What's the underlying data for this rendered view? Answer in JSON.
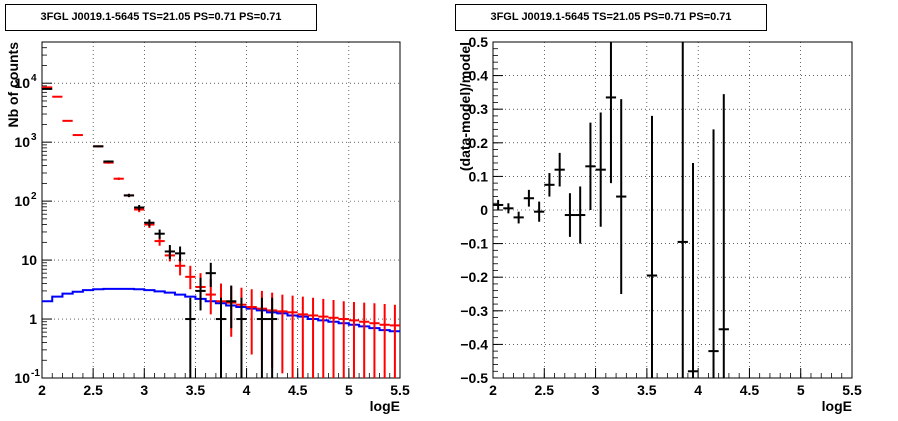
{
  "chart_data": [
    {
      "type": "scatter",
      "panel": "left",
      "title": "3FGL J0019.1-5645 TS=21.05 PS=0.71 PS=0.71",
      "xlabel": "logE",
      "ylabel": "Nb of counts",
      "xlim": [
        2,
        5.5
      ],
      "ylim": [
        0.1,
        50000
      ],
      "yscale": "log",
      "grid": true,
      "x_ticks": [
        "2",
        "2.5",
        "3",
        "3.5",
        "4",
        "4.5",
        "5",
        "5.5"
      ],
      "y_ticks": [
        {
          "value": 0.1,
          "label": "10",
          "exp": "-1"
        },
        {
          "value": 1,
          "label": "1",
          "exp": ""
        },
        {
          "value": 10,
          "label": "10",
          "exp": ""
        },
        {
          "value": 100,
          "label": "10",
          "exp": "2"
        },
        {
          "value": 1000,
          "label": "10",
          "exp": "3"
        },
        {
          "value": 10000,
          "label": "10",
          "exp": "4"
        }
      ],
      "series": [
        {
          "color": "#ff0000",
          "halfwidth": 0.05,
          "points": [
            {
              "x": 2.05,
              "y": 8500,
              "lo": 8300,
              "hi": 8700
            },
            {
              "x": 2.15,
              "y": 5900,
              "lo": 5750,
              "hi": 6050
            },
            {
              "x": 2.25,
              "y": 2300,
              "lo": 2250,
              "hi": 2350
            },
            {
              "x": 2.35,
              "y": 1320,
              "lo": 1290,
              "hi": 1350
            },
            {
              "x": 2.55,
              "y": 850,
              "lo": 820,
              "hi": 880
            },
            {
              "x": 2.65,
              "y": 450,
              "lo": 430,
              "hi": 470
            },
            {
              "x": 2.75,
              "y": 240,
              "lo": 228,
              "hi": 252
            },
            {
              "x": 2.85,
              "y": 125,
              "lo": 117,
              "hi": 133
            },
            {
              "x": 2.95,
              "y": 72,
              "lo": 65,
              "hi": 79
            },
            {
              "x": 3.05,
              "y": 40,
              "lo": 35,
              "hi": 45
            },
            {
              "x": 3.15,
              "y": 21,
              "lo": 17.5,
              "hi": 25
            },
            {
              "x": 3.25,
              "y": 12,
              "lo": 9.5,
              "hi": 15
            },
            {
              "x": 3.35,
              "y": 8,
              "lo": 5.5,
              "hi": 11.5
            },
            {
              "x": 3.45,
              "y": 5.2,
              "lo": 3.2,
              "hi": 8
            },
            {
              "x": 3.55,
              "y": 3.5,
              "lo": 1.8,
              "hi": 6
            },
            {
              "x": 3.65,
              "y": 2.6,
              "lo": 1.2,
              "hi": 4.8
            },
            {
              "x": 3.75,
              "y": 2.0,
              "lo": 0.75,
              "hi": 4.0
            },
            {
              "x": 3.85,
              "y": 1.9,
              "lo": 0.5,
              "hi": 3.6
            },
            {
              "x": 3.95,
              "y": 1.75,
              "lo": 0.35,
              "hi": 3.4
            },
            {
              "x": 4.05,
              "y": 1.6,
              "lo": 0.25,
              "hi": 3.2
            },
            {
              "x": 4.15,
              "y": 1.5,
              "lo": 0.2,
              "hi": 3.0
            },
            {
              "x": 4.25,
              "y": 1.4,
              "lo": 0.15,
              "hi": 2.8
            },
            {
              "x": 4.35,
              "y": 1.35,
              "lo": 0.12,
              "hi": 2.6
            },
            {
              "x": 4.45,
              "y": 1.3,
              "lo": 0.1,
              "hi": 2.5
            },
            {
              "x": 4.55,
              "y": 1.2,
              "lo": 0.1,
              "hi": 2.4
            },
            {
              "x": 4.65,
              "y": 1.15,
              "lo": 0.1,
              "hi": 2.3
            },
            {
              "x": 4.75,
              "y": 1.1,
              "lo": 0.1,
              "hi": 2.2
            },
            {
              "x": 4.85,
              "y": 1.05,
              "lo": 0.1,
              "hi": 2.1
            },
            {
              "x": 4.95,
              "y": 1.0,
              "lo": 0.1,
              "hi": 2.0
            },
            {
              "x": 5.05,
              "y": 0.95,
              "lo": 0.1,
              "hi": 1.95
            },
            {
              "x": 5.15,
              "y": 0.9,
              "lo": 0.1,
              "hi": 1.9
            },
            {
              "x": 5.25,
              "y": 0.85,
              "lo": 0.1,
              "hi": 1.85
            },
            {
              "x": 5.35,
              "y": 0.8,
              "lo": 0.1,
              "hi": 1.8
            },
            {
              "x": 5.45,
              "y": 0.78,
              "lo": 0.1,
              "hi": 1.75
            }
          ]
        },
        {
          "color": "#000000",
          "halfwidth": 0.05,
          "points": [
            {
              "x": 2.05,
              "y": 8000,
              "lo": 7800,
              "hi": 8200
            },
            {
              "x": 2.55,
              "y": 850,
              "lo": 820,
              "hi": 880
            },
            {
              "x": 2.65,
              "y": 470,
              "lo": 450,
              "hi": 490
            },
            {
              "x": 2.85,
              "y": 125,
              "lo": 117,
              "hi": 133
            },
            {
              "x": 2.95,
              "y": 78,
              "lo": 70,
              "hi": 86
            },
            {
              "x": 3.05,
              "y": 43,
              "lo": 37,
              "hi": 49
            },
            {
              "x": 3.15,
              "y": 28,
              "lo": 23,
              "hi": 33
            },
            {
              "x": 3.25,
              "y": 14,
              "lo": 10.5,
              "hi": 18
            },
            {
              "x": 3.35,
              "y": 13,
              "lo": 9.5,
              "hi": 17
            },
            {
              "x": 3.45,
              "y": 1,
              "lo": 0.1,
              "hi": 2.3
            },
            {
              "x": 3.55,
              "y": 3,
              "lo": 1.4,
              "hi": 5
            },
            {
              "x": 3.65,
              "y": 6,
              "lo": 3.5,
              "hi": 9
            },
            {
              "x": 3.75,
              "y": 1,
              "lo": 0.1,
              "hi": 2.3
            },
            {
              "x": 3.85,
              "y": 2,
              "lo": 0.7,
              "hi": 3.7
            },
            {
              "x": 3.95,
              "y": 1,
              "lo": 0.1,
              "hi": 2.3
            },
            {
              "x": 4.15,
              "y": 1,
              "lo": 0.1,
              "hi": 2.3
            },
            {
              "x": 4.25,
              "y": 1,
              "lo": 0.1,
              "hi": 2.3
            }
          ]
        }
      ],
      "model": {
        "color": "#0000ff",
        "x": [
          2.0,
          2.1,
          2.2,
          2.3,
          2.4,
          2.5,
          2.6,
          2.7,
          2.8,
          2.9,
          3.0,
          3.1,
          3.2,
          3.3,
          3.4,
          3.5,
          3.6,
          3.7,
          3.8,
          3.9,
          4.0,
          4.1,
          4.2,
          4.3,
          4.4,
          4.5,
          4.6,
          4.7,
          4.8,
          4.9,
          5.0,
          5.1,
          5.2,
          5.3,
          5.4,
          5.5
        ],
        "y": [
          2.0,
          2.4,
          2.7,
          2.9,
          3.1,
          3.2,
          3.25,
          3.25,
          3.25,
          3.2,
          3.1,
          2.95,
          2.8,
          2.6,
          2.4,
          2.2,
          2.0,
          1.85,
          1.7,
          1.6,
          1.5,
          1.4,
          1.3,
          1.25,
          1.15,
          1.1,
          1.0,
          0.95,
          0.9,
          0.85,
          0.8,
          0.75,
          0.7,
          0.65,
          0.62,
          0.6
        ]
      }
    },
    {
      "type": "scatter",
      "panel": "right",
      "title": "3FGL J0019.1-5645 TS=21.05 PS=0.71 PS=0.71",
      "xlabel": "logE",
      "ylabel": "(data-model)/model",
      "xlim": [
        2,
        5.5
      ],
      "ylim": [
        -0.5,
        0.5
      ],
      "yscale": "linear",
      "grid": true,
      "x_ticks": [
        "2",
        "2.5",
        "3",
        "3.5",
        "4",
        "4.5",
        "5",
        "5.5"
      ],
      "y_ticks": [
        {
          "value": -0.5,
          "label": "−0.5"
        },
        {
          "value": -0.4,
          "label": "−0.4"
        },
        {
          "value": -0.3,
          "label": "−0.3"
        },
        {
          "value": -0.2,
          "label": "−0.2"
        },
        {
          "value": -0.1,
          "label": "−0.1"
        },
        {
          "value": 0,
          "label": "0"
        },
        {
          "value": 0.1,
          "label": "0.1"
        },
        {
          "value": 0.2,
          "label": "0.2"
        },
        {
          "value": 0.3,
          "label": "0.3"
        },
        {
          "value": 0.4,
          "label": "0.4"
        },
        {
          "value": 0.5,
          "label": "0.5"
        }
      ],
      "series": [
        {
          "color": "#000000",
          "halfwidth": 0.05,
          "points": [
            {
              "x": 2.05,
              "y": 0.015,
              "lo": 0.0,
              "hi": 0.03
            },
            {
              "x": 2.15,
              "y": 0.005,
              "lo": -0.01,
              "hi": 0.02
            },
            {
              "x": 2.25,
              "y": -0.022,
              "lo": -0.04,
              "hi": -0.005
            },
            {
              "x": 2.35,
              "y": 0.035,
              "lo": 0.01,
              "hi": 0.06
            },
            {
              "x": 2.45,
              "y": -0.005,
              "lo": -0.035,
              "hi": 0.025
            },
            {
              "x": 2.55,
              "y": 0.075,
              "lo": 0.04,
              "hi": 0.11
            },
            {
              "x": 2.65,
              "y": 0.12,
              "lo": 0.07,
              "hi": 0.17
            },
            {
              "x": 2.75,
              "y": -0.015,
              "lo": -0.08,
              "hi": 0.05
            },
            {
              "x": 2.85,
              "y": -0.015,
              "lo": -0.1,
              "hi": 0.07
            },
            {
              "x": 2.95,
              "y": 0.13,
              "lo": 0.0,
              "hi": 0.26
            },
            {
              "x": 3.05,
              "y": 0.12,
              "lo": -0.05,
              "hi": 0.29
            },
            {
              "x": 3.15,
              "y": 0.335,
              "lo": 0.08,
              "hi": 0.5
            },
            {
              "x": 3.25,
              "y": 0.04,
              "lo": -0.25,
              "hi": 0.33
            },
            {
              "x": 3.55,
              "y": -0.195,
              "lo": -0.5,
              "hi": 0.28
            },
            {
              "x": 3.85,
              "y": -0.095,
              "lo": -0.5,
              "hi": 0.5
            },
            {
              "x": 3.95,
              "y": -0.48,
              "lo": -0.5,
              "hi": 0.14
            },
            {
              "x": 4.15,
              "y": -0.42,
              "lo": -0.5,
              "hi": 0.24
            },
            {
              "x": 4.25,
              "y": -0.355,
              "lo": -0.5,
              "hi": 0.345
            }
          ]
        }
      ]
    }
  ]
}
